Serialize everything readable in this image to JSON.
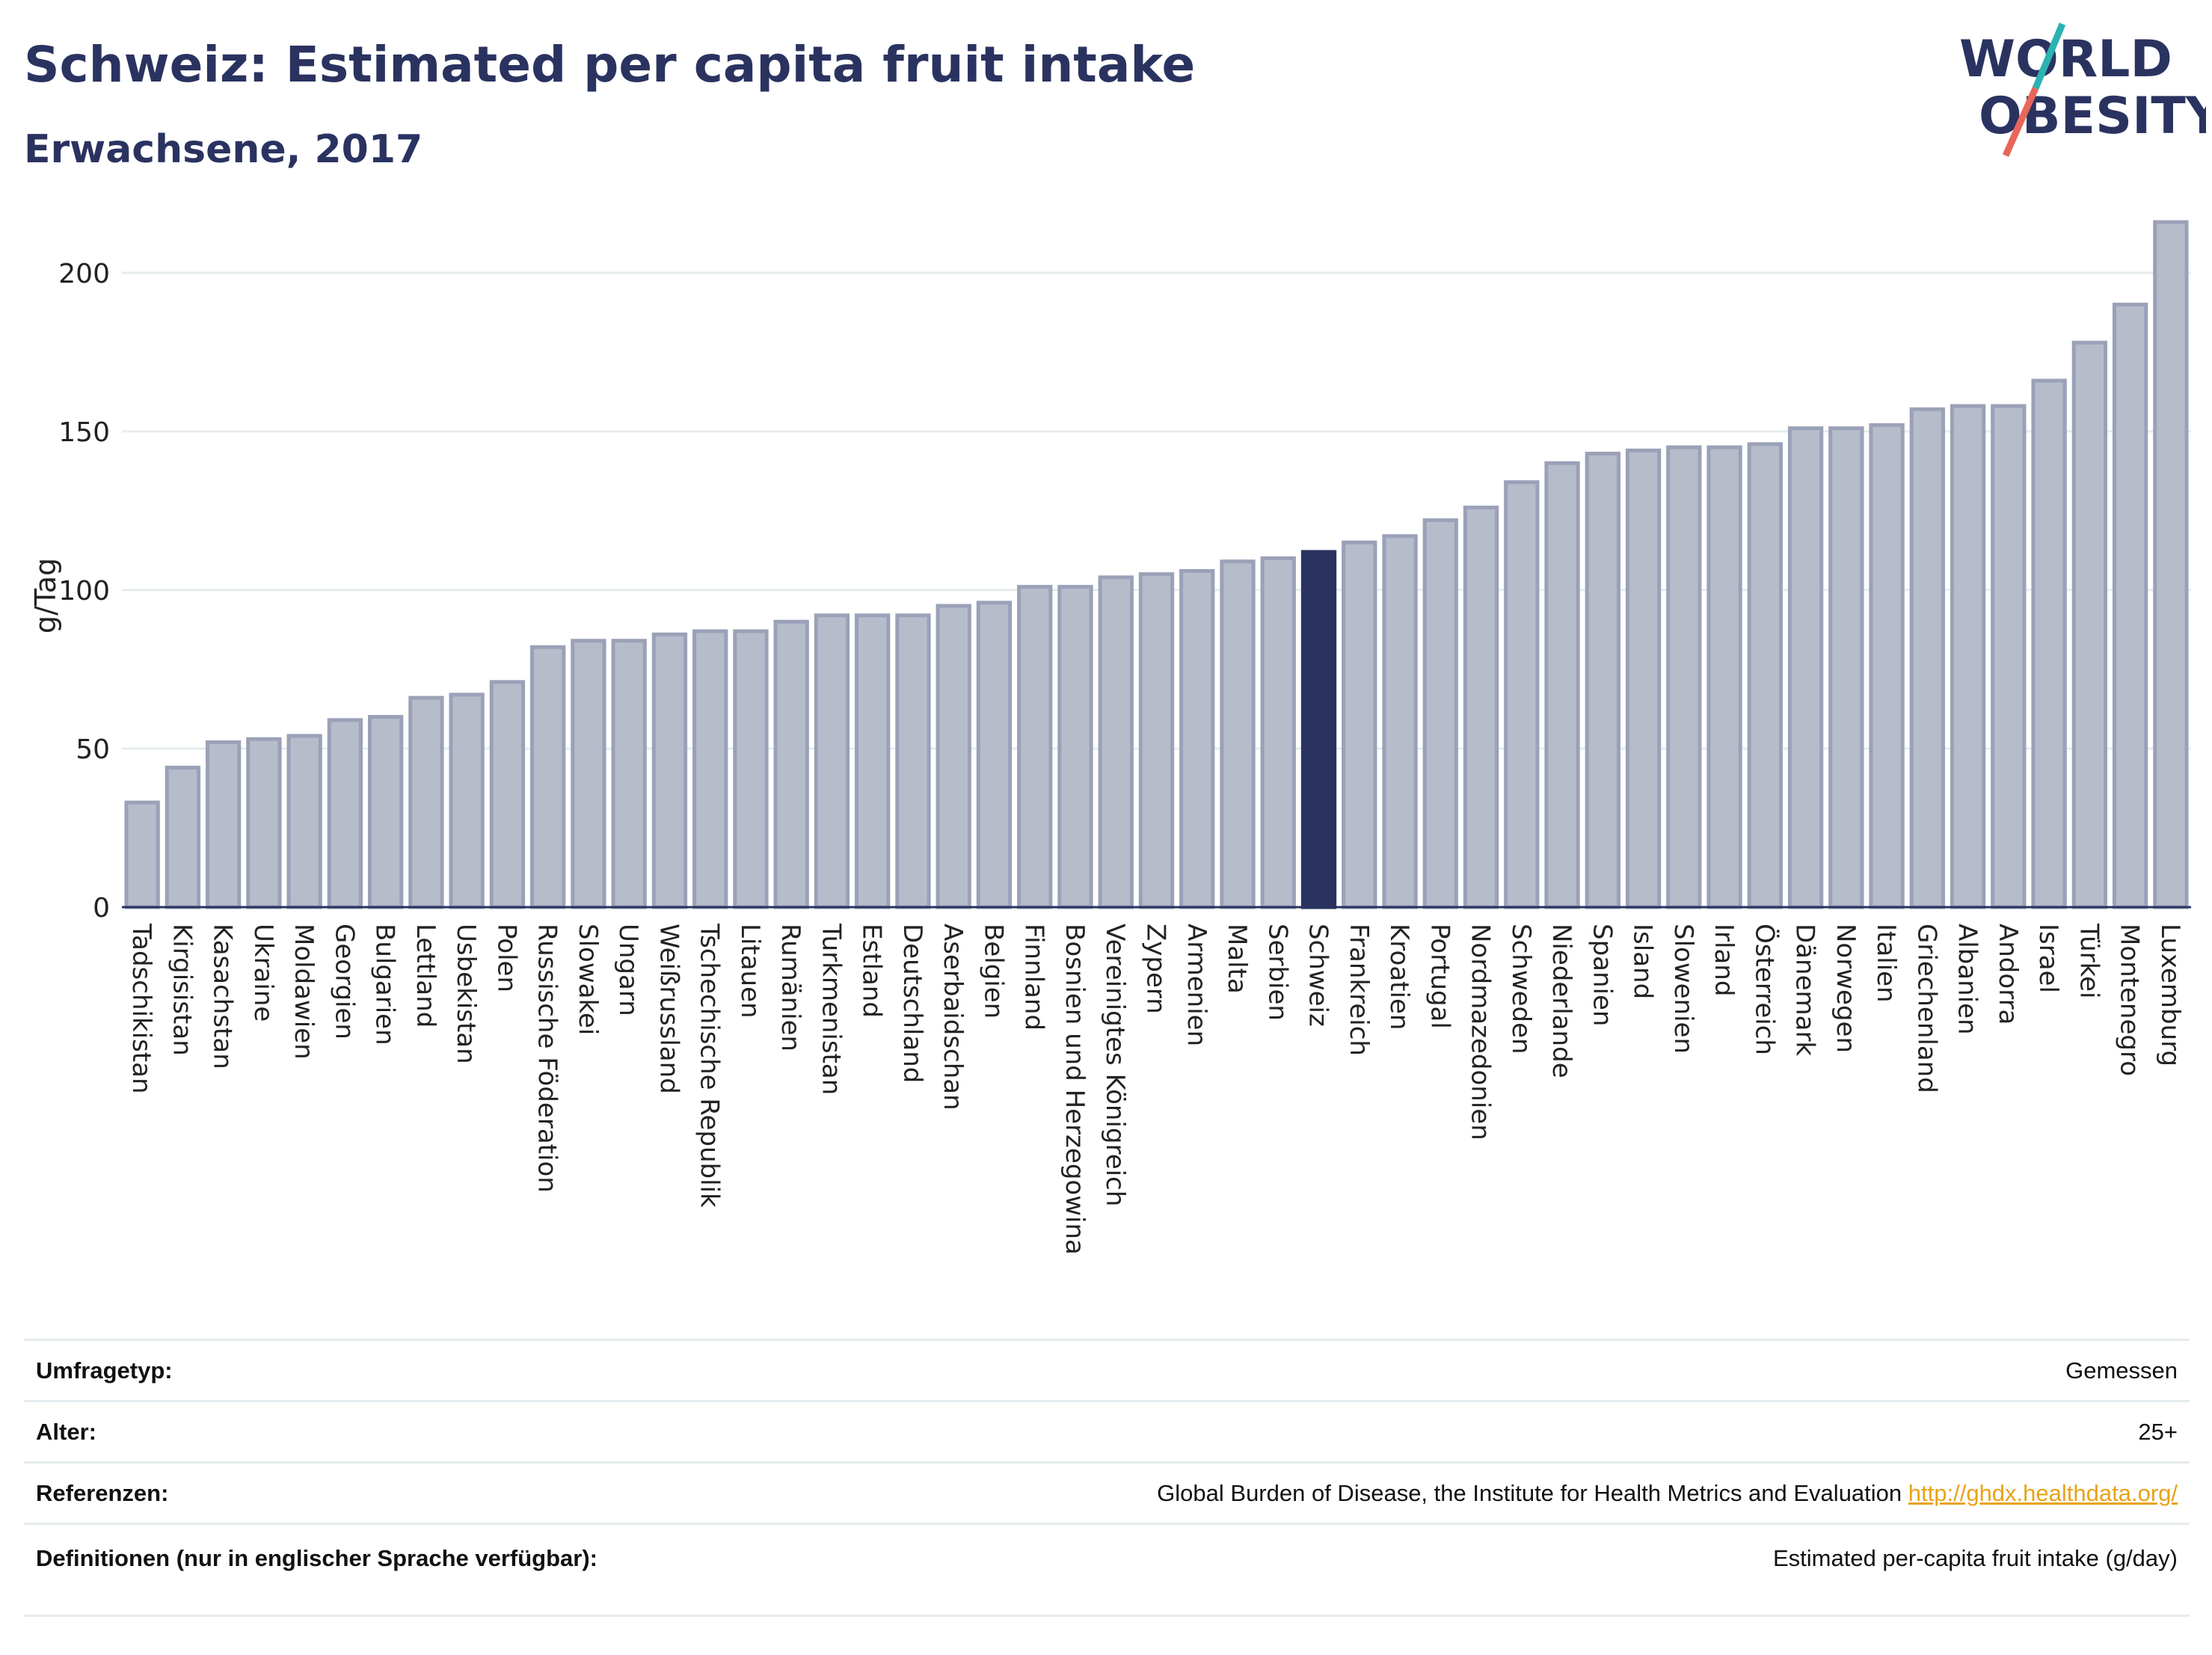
{
  "header": {
    "title": "Schweiz: Estimated per capita fruit intake",
    "subtitle": "Erwachsene, 2017"
  },
  "logo": {
    "line1": "WORLD",
    "line2": "OBESITY",
    "name": "world-obesity-logo"
  },
  "colors": {
    "bar": "#b7bccb",
    "bar_stroke": "#9aa1b8",
    "highlight": "#2a3360",
    "text": "#2a3360",
    "grid": "#e6ecef",
    "link": "#e8a317"
  },
  "chart_data": {
    "type": "bar",
    "ylabel": "g/Tag",
    "ylim": [
      0,
      220
    ],
    "yticks": [
      0,
      50,
      100,
      150,
      200
    ],
    "grid": true,
    "highlight": "Schweiz",
    "categories": [
      "Tadschikistan",
      "Kirgisistan",
      "Kasachstan",
      "Ukraine",
      "Moldawien",
      "Georgien",
      "Bulgarien",
      "Lettland",
      "Usbekistan",
      "Polen",
      "Russische Föderation",
      "Slowakei",
      "Ungarn",
      "Weißrussland",
      "Tschechische Republik",
      "Litauen",
      "Rumänien",
      "Turkmenistan",
      "Estland",
      "Deutschland",
      "Aserbaidschan",
      "Belgien",
      "Finnland",
      "Bosnien und Herzegowina",
      "Vereinigtes Königreich",
      "Zypern",
      "Armenien",
      "Malta",
      "Serbien",
      "Schweiz",
      "Frankreich",
      "Kroatien",
      "Portugal",
      "Nordmazedonien",
      "Schweden",
      "Niederlande",
      "Spanien",
      "Island",
      "Slowenien",
      "Irland",
      "Österreich",
      "Dänemark",
      "Norwegen",
      "Italien",
      "Griechenland",
      "Albanien",
      "Andorra",
      "Israel",
      "Türkei",
      "Montenegro",
      "Luxemburg"
    ],
    "values": [
      33,
      44,
      52,
      53,
      54,
      59,
      60,
      66,
      67,
      71,
      82,
      84,
      84,
      86,
      87,
      87,
      90,
      92,
      92,
      92,
      95,
      96,
      101,
      101,
      104,
      105,
      106,
      109,
      110,
      112,
      115,
      117,
      122,
      126,
      134,
      140,
      143,
      144,
      145,
      145,
      146,
      151,
      151,
      152,
      157,
      158,
      158,
      166,
      178,
      190,
      216
    ]
  },
  "meta": {
    "rows": [
      {
        "key": "Umfragetyp:",
        "value": "Gemessen"
      },
      {
        "key": "Alter:",
        "value": "25+"
      },
      {
        "key": "Referenzen:",
        "value": "Global Burden of Disease, the Institute for Health Metrics and Evaluation",
        "link": "http://ghdx.healthdata.org/"
      },
      {
        "key": "Definitionen (nur in englischer Sprache verfügbar):",
        "value": "Estimated per-capita fruit intake (g/day)"
      }
    ]
  }
}
